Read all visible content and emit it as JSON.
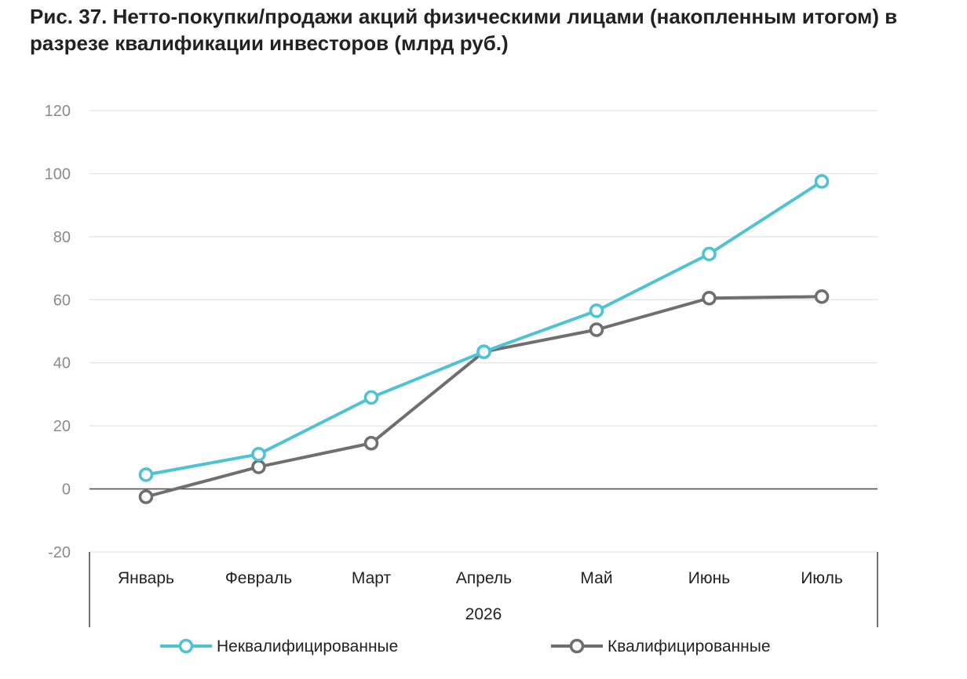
{
  "title": "Рис. 37. Нетто-покупки/продажи акций физическими лицами (накопленным итогом) в разрезе квалификации инвесторов (млрд руб.)",
  "chart_data": {
    "type": "line",
    "title": "Рис. 37. Нетто-покупки/продажи акций физическими лицами (накопленным итогом) в разрезе квалификации инвесторов (млрд руб.)",
    "categories": [
      "Январь",
      "Февраль",
      "Март",
      "Апрель",
      "Май",
      "Июнь",
      "Июль"
    ],
    "group_label": "2026",
    "xlabel": "",
    "ylabel": "",
    "ylim": [
      -20,
      120
    ],
    "yticks": [
      -20,
      0,
      20,
      40,
      60,
      80,
      100,
      120
    ],
    "grid": true,
    "legend_position": "bottom",
    "series": [
      {
        "name": "Неквалифицированные",
        "color": "#4ec3d3",
        "values": [
          4.5,
          11,
          29,
          43.5,
          56.5,
          74.5,
          97.5
        ]
      },
      {
        "name": "Квалифицированные",
        "color": "#6f6f6f",
        "values": [
          -2.5,
          7,
          14.5,
          43.5,
          50.5,
          60.5,
          61
        ]
      }
    ]
  }
}
